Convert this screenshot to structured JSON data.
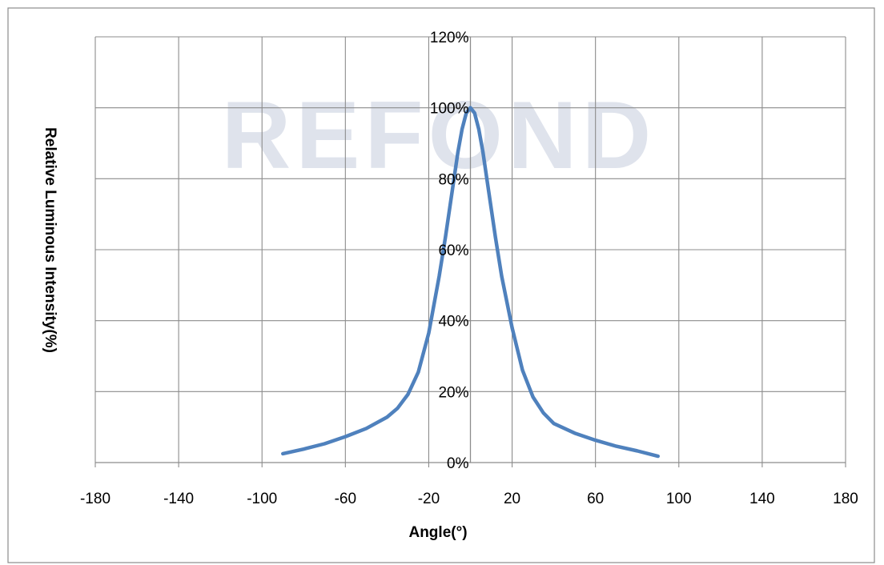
{
  "chart_data": {
    "type": "line",
    "title": "",
    "xlabel": "Angle(°)",
    "ylabel": "Relative Luminous Intensity(%)",
    "xlim": [
      -180,
      180
    ],
    "ylim": [
      0,
      120
    ],
    "x_ticks": [
      -180,
      -140,
      -100,
      -60,
      -20,
      20,
      60,
      100,
      140,
      180
    ],
    "x_tick_labels": [
      "-180",
      "-140",
      "-100",
      "-60",
      "-20",
      "20",
      "60",
      "100",
      "140",
      "180"
    ],
    "y_ticks": [
      0,
      20,
      40,
      60,
      80,
      100,
      120
    ],
    "y_tick_labels": [
      "0%",
      "20%",
      "40%",
      "60%",
      "80%",
      "100%",
      "120%"
    ],
    "grid": true,
    "legend": "none",
    "series": [
      {
        "color": "#4f81bd",
        "x": [
          -90,
          -80,
          -70,
          -60,
          -50,
          -40,
          -35,
          -30,
          -25,
          -20,
          -15,
          -12,
          -10,
          -8,
          -6,
          -4,
          -2,
          0,
          2,
          4,
          6,
          8,
          10,
          12,
          15,
          20,
          25,
          30,
          35,
          40,
          50,
          60,
          70,
          80,
          90
        ],
        "y": [
          2.5,
          3.8,
          5.3,
          7.3,
          9.6,
          12.8,
          15.3,
          19.2,
          25.5,
          36.5,
          52.5,
          63.5,
          71.5,
          79.5,
          87.5,
          94,
          98.5,
          100,
          98.5,
          94,
          87.5,
          79.5,
          71.5,
          63.5,
          52.5,
          38,
          26,
          18.5,
          14,
          11,
          8.3,
          6.3,
          4.6,
          3.3,
          1.8
        ]
      }
    ],
    "watermark": "REFOND"
  }
}
